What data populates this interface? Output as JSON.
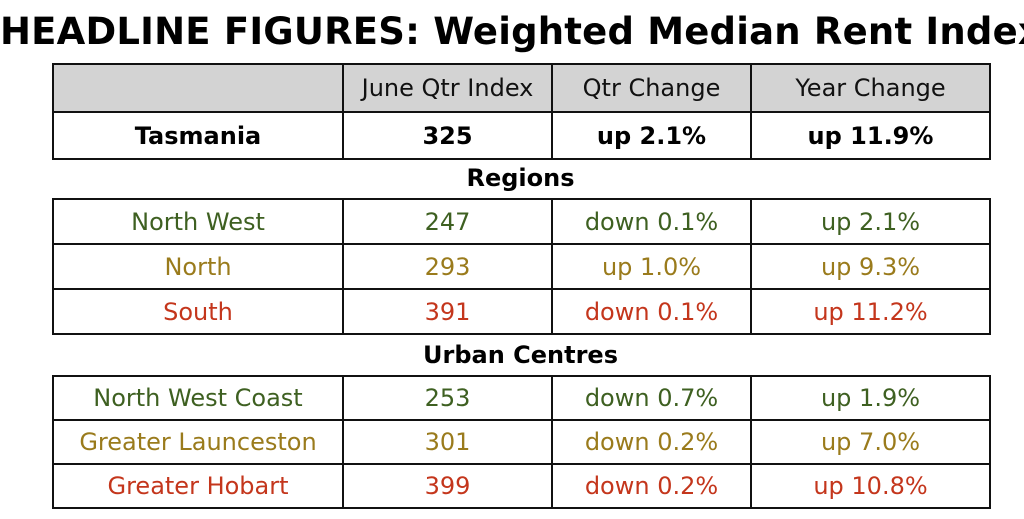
{
  "title": "HEADLINE FIGURES: Weighted Median Rent Index",
  "colors": {
    "green": "#3e6021",
    "olive": "#9a7b1c",
    "red": "#c4361c",
    "header_bg": "#d3d3d3"
  },
  "header": {
    "col0": "",
    "col1": "June Qtr Index",
    "col2": "Qtr Change",
    "col3": "Year Change"
  },
  "tasmania": {
    "name": "Tasmania",
    "index": "325",
    "qtr": "up 2.1%",
    "year": "up 11.9%"
  },
  "regions": {
    "label": "Regions",
    "rows": [
      {
        "name": "North West",
        "index": "247",
        "qtr": "down 0.1%",
        "year": "up 2.1%"
      },
      {
        "name": "North",
        "index": "293",
        "qtr": "up 1.0%",
        "year": "up 9.3%"
      },
      {
        "name": "South",
        "index": "391",
        "qtr": "down 0.1%",
        "year": "up 11.2%"
      }
    ]
  },
  "urban": {
    "label": "Urban Centres",
    "rows": [
      {
        "name": "North West Coast",
        "index": "253",
        "qtr": "down 0.7%",
        "year": "up 1.9%"
      },
      {
        "name": "Greater Launceston",
        "index": "301",
        "qtr": "down 0.2%",
        "year": "up 7.0%"
      },
      {
        "name": "Greater Hobart",
        "index": "399",
        "qtr": "down 0.2%",
        "year": "up 10.8%"
      }
    ]
  }
}
